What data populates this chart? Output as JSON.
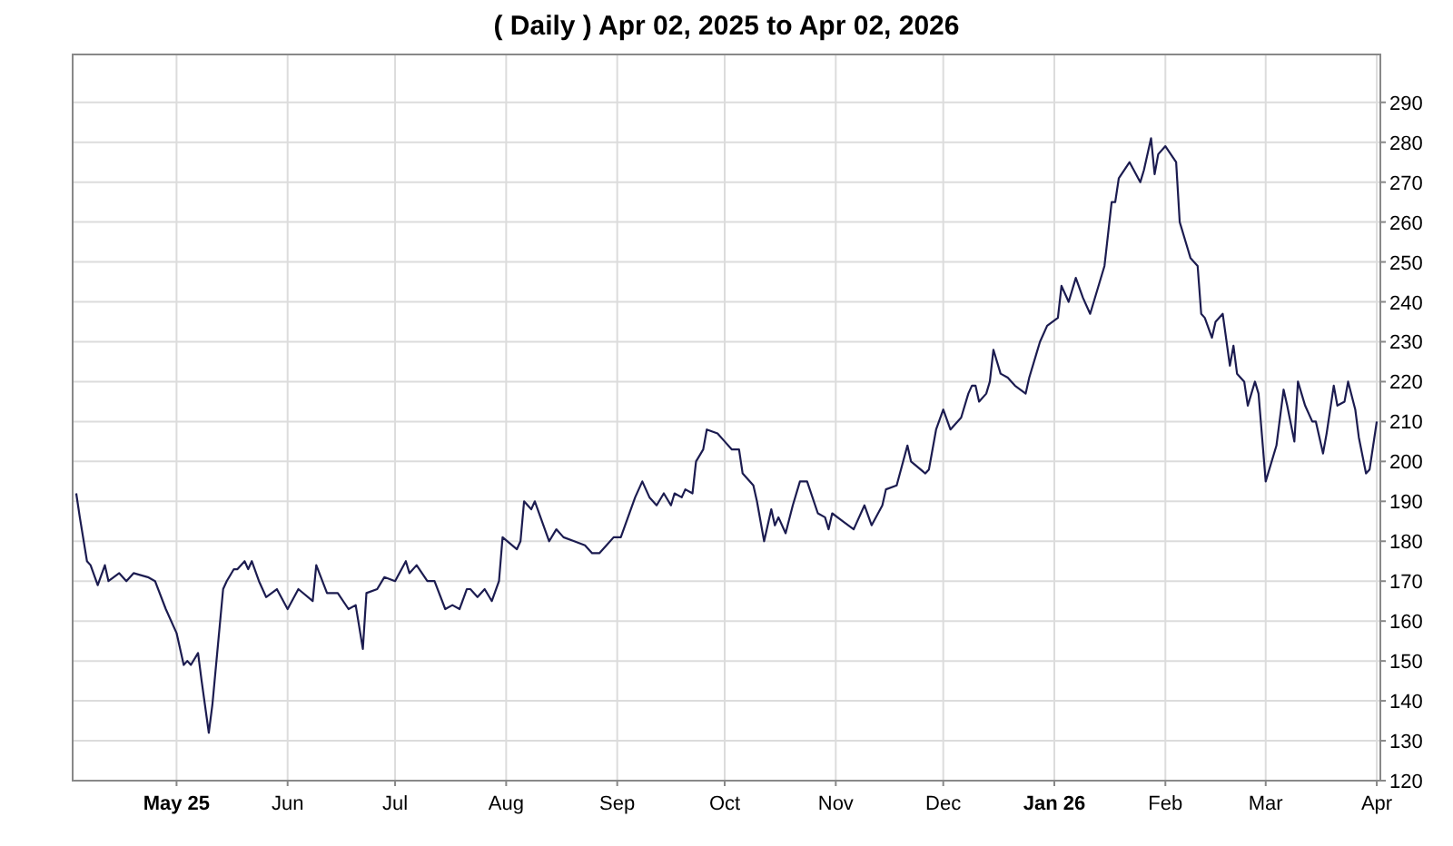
{
  "chart_data": {
    "type": "line",
    "title": "( Daily ) Apr 02, 2025 to Apr 02, 2026",
    "xlim": [
      "2025-04-02",
      "2026-04-02"
    ],
    "xticks": [
      {
        "value": "2025-05-01",
        "label": "May 25"
      },
      {
        "value": "2025-06-01",
        "label": "Jun"
      },
      {
        "value": "2025-07-01",
        "label": "Jul"
      },
      {
        "value": "2025-08-01",
        "label": "Aug"
      },
      {
        "value": "2025-09-01",
        "label": "Sep"
      },
      {
        "value": "2025-10-01",
        "label": "Oct"
      },
      {
        "value": "2025-11-01",
        "label": "Nov"
      },
      {
        "value": "2025-12-01",
        "label": "Dec"
      },
      {
        "value": "2026-01-01",
        "label": "Jan 26"
      },
      {
        "value": "2026-02-01",
        "label": "Feb"
      },
      {
        "value": "2026-03-01",
        "label": "Mar"
      },
      {
        "value": "2026-04-01",
        "label": "Apr"
      }
    ],
    "ylim": [
      120,
      302
    ],
    "yticks": [
      120,
      130,
      140,
      150,
      160,
      170,
      180,
      190,
      200,
      210,
      220,
      230,
      240,
      250,
      260,
      270,
      280,
      290
    ],
    "grid": true,
    "series": [
      {
        "color": "#1c1c50",
        "x": [
          "2025-04-03",
          "2025-04-04",
          "2025-04-06",
          "2025-04-07",
          "2025-04-09",
          "2025-04-11",
          "2025-04-12",
          "2025-04-15",
          "2025-04-17",
          "2025-04-19",
          "2025-04-23",
          "2025-04-25",
          "2025-04-28",
          "2025-05-01",
          "2025-05-03",
          "2025-05-04",
          "2025-05-05",
          "2025-05-07",
          "2025-05-08",
          "2025-05-10",
          "2025-05-11",
          "2025-05-14",
          "2025-05-15",
          "2025-05-17",
          "2025-05-18",
          "2025-05-20",
          "2025-05-21",
          "2025-05-22",
          "2025-05-24",
          "2025-05-26",
          "2025-05-29",
          "2025-06-01",
          "2025-06-04",
          "2025-06-08",
          "2025-06-09",
          "2025-06-12",
          "2025-06-15",
          "2025-06-18",
          "2025-06-20",
          "2025-06-22",
          "2025-06-23",
          "2025-06-26",
          "2025-06-28",
          "2025-07-01",
          "2025-07-04",
          "2025-07-05",
          "2025-07-07",
          "2025-07-10",
          "2025-07-12",
          "2025-07-15",
          "2025-07-17",
          "2025-07-19",
          "2025-07-21",
          "2025-07-22",
          "2025-07-24",
          "2025-07-26",
          "2025-07-28",
          "2025-07-30",
          "2025-07-31",
          "2025-08-04",
          "2025-08-05",
          "2025-08-06",
          "2025-08-08",
          "2025-08-09",
          "2025-08-11",
          "2025-08-13",
          "2025-08-15",
          "2025-08-17",
          "2025-08-20",
          "2025-08-23",
          "2025-08-25",
          "2025-08-27",
          "2025-08-29",
          "2025-08-31",
          "2025-09-02",
          "2025-09-04",
          "2025-09-06",
          "2025-09-08",
          "2025-09-10",
          "2025-09-12",
          "2025-09-14",
          "2025-09-16",
          "2025-09-17",
          "2025-09-19",
          "2025-09-20",
          "2025-09-22",
          "2025-09-23",
          "2025-09-25",
          "2025-09-26",
          "2025-09-29",
          "2025-10-01",
          "2025-10-03",
          "2025-10-05",
          "2025-10-06",
          "2025-10-09",
          "2025-10-10",
          "2025-10-12",
          "2025-10-14",
          "2025-10-15",
          "2025-10-16",
          "2025-10-18",
          "2025-10-20",
          "2025-10-22",
          "2025-10-24",
          "2025-10-27",
          "2025-10-29",
          "2025-10-30",
          "2025-10-31",
          "2025-11-03",
          "2025-11-06",
          "2025-11-09",
          "2025-11-11",
          "2025-11-14",
          "2025-11-15",
          "2025-11-18",
          "2025-11-21",
          "2025-11-22",
          "2025-11-26",
          "2025-11-27",
          "2025-11-29",
          "2025-12-01",
          "2025-12-03",
          "2025-12-06",
          "2025-12-08",
          "2025-12-09",
          "2025-12-10",
          "2025-12-11",
          "2025-12-13",
          "2025-12-14",
          "2025-12-15",
          "2025-12-17",
          "2025-12-19",
          "2025-12-21",
          "2025-12-24",
          "2025-12-25",
          "2025-12-27",
          "2025-12-28",
          "2025-12-30",
          "2026-01-02",
          "2026-01-03",
          "2026-01-05",
          "2026-01-07",
          "2026-01-09",
          "2026-01-11",
          "2026-01-15",
          "2026-01-17",
          "2026-01-18",
          "2026-01-19",
          "2026-01-22",
          "2026-01-25",
          "2026-01-26",
          "2026-01-28",
          "2026-01-29",
          "2026-01-30",
          "2026-02-01",
          "2026-02-04",
          "2026-02-05",
          "2026-02-07",
          "2026-02-08",
          "2026-02-10",
          "2026-02-11",
          "2026-02-12",
          "2026-02-14",
          "2026-02-15",
          "2026-02-17",
          "2026-02-19",
          "2026-02-20",
          "2026-02-21",
          "2026-02-23",
          "2026-02-24",
          "2026-02-26",
          "2026-02-27",
          "2026-03-01",
          "2026-03-04",
          "2026-03-06",
          "2026-03-07",
          "2026-03-09",
          "2026-03-10",
          "2026-03-12",
          "2026-03-14",
          "2026-03-15",
          "2026-03-17",
          "2026-03-18",
          "2026-03-20",
          "2026-03-21",
          "2026-03-23",
          "2026-03-24",
          "2026-03-26",
          "2026-03-27",
          "2026-03-29",
          "2026-03-30",
          "2026-04-01"
        ],
        "values": [
          192,
          186,
          175,
          174,
          169,
          174,
          170,
          172,
          170,
          172,
          171,
          170,
          163,
          157,
          149,
          150,
          149,
          152,
          145,
          132,
          139,
          168,
          170,
          173,
          173,
          175,
          173,
          175,
          170,
          166,
          168,
          163,
          168,
          165,
          174,
          167,
          167,
          163,
          164,
          153,
          167,
          168,
          171,
          170,
          175,
          172,
          174,
          170,
          170,
          163,
          164,
          163,
          168,
          168,
          166,
          168,
          165,
          170,
          181,
          178,
          180,
          190,
          188,
          190,
          185,
          180,
          183,
          181,
          180,
          179,
          177,
          177,
          179,
          181,
          181,
          186,
          191,
          195,
          191,
          189,
          192,
          189,
          192,
          191,
          193,
          192,
          200,
          203,
          208,
          207,
          205,
          203,
          203,
          197,
          194,
          190,
          180,
          188,
          184,
          186,
          182,
          189,
          195,
          195,
          187,
          186,
          183,
          187,
          185,
          183,
          189,
          184,
          189,
          193,
          194,
          204,
          200,
          197,
          198,
          208,
          213,
          208,
          211,
          217,
          219,
          219,
          215,
          217,
          220,
          228,
          222,
          221,
          219,
          217,
          221,
          227,
          230,
          234,
          236,
          244,
          240,
          246,
          241,
          237,
          249,
          265,
          265,
          271,
          275,
          270,
          273,
          281,
          272,
          277,
          279,
          275,
          260,
          254,
          251,
          249,
          237,
          236,
          231,
          235,
          237,
          224,
          229,
          222,
          220,
          214,
          220,
          217,
          195,
          204,
          218,
          214,
          205,
          220,
          214,
          210,
          210,
          202,
          207,
          219,
          214,
          215,
          220,
          213,
          206,
          197,
          198,
          210
        ]
      }
    ]
  }
}
